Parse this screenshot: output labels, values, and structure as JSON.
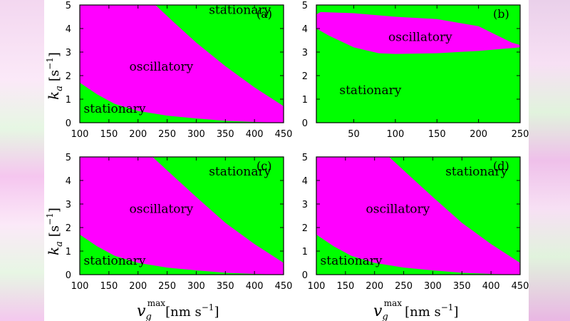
{
  "colors": {
    "oscillatory": "#ff00ff",
    "stationary": "#00ff00",
    "frame": "#000000"
  },
  "labels": {
    "ylabel_symbol": "k",
    "ylabel_sub": "a",
    "ylabel_unit": "[s",
    "ylabel_exp": "−1",
    "ylabel_close": "]",
    "xlabel_symbol": "v",
    "xlabel_sub": "g",
    "xlabel_sup": "max",
    "xlabel_unit_left": "[nm s",
    "xlabel_unit_right": "[nm s",
    "xlabel_exp": "−1",
    "xlabel_close": "]"
  },
  "chart_data": [
    {
      "type": "area",
      "panel": "(a)",
      "xlim": [
        100,
        450
      ],
      "ylim": [
        0,
        5
      ],
      "xticks": [
        100,
        150,
        200,
        250,
        300,
        350,
        400,
        450
      ],
      "yticks": [
        0,
        1,
        2,
        3,
        4,
        5
      ],
      "regions": [
        {
          "name": "stationary",
          "label_at": [
            375,
            4.8
          ]
        },
        {
          "name": "oscillatory",
          "label_at": [
            240,
            2.4
          ]
        },
        {
          "name": "stationary",
          "label_at": [
            160,
            0.6
          ]
        }
      ],
      "upper_boundary": [
        [
          230,
          5
        ],
        [
          260,
          4.3
        ],
        [
          300,
          3.4
        ],
        [
          350,
          2.4
        ],
        [
          400,
          1.5
        ],
        [
          450,
          0.7
        ]
      ],
      "lower_boundary": [
        [
          100,
          1.7
        ],
        [
          130,
          1.2
        ],
        [
          160,
          0.8
        ],
        [
          200,
          0.5
        ],
        [
          250,
          0.3
        ],
        [
          300,
          0.18
        ],
        [
          350,
          0.08
        ],
        [
          400,
          0.03
        ],
        [
          440,
          0.0
        ]
      ]
    },
    {
      "type": "area",
      "panel": "(b)",
      "xlim": [
        5,
        250
      ],
      "ylim": [
        0,
        5
      ],
      "xticks": [
        50,
        100,
        150,
        200,
        250
      ],
      "yticks": [
        0,
        1,
        2,
        3,
        4,
        5
      ],
      "regions": [
        {
          "name": "oscillatory",
          "label_at": [
            130,
            3.65
          ]
        },
        {
          "name": "stationary",
          "label_at": [
            70,
            1.4
          ]
        }
      ],
      "upper_boundary": [
        [
          5,
          4.6
        ],
        [
          10,
          4.7
        ],
        [
          50,
          4.65
        ],
        [
          100,
          4.5
        ],
        [
          150,
          4.4
        ],
        [
          200,
          4.1
        ],
        [
          240,
          3.4
        ],
        [
          250,
          3.3
        ]
      ],
      "lower_boundary": [
        [
          5,
          4.0
        ],
        [
          20,
          3.7
        ],
        [
          50,
          3.2
        ],
        [
          80,
          2.95
        ],
        [
          100,
          2.92
        ],
        [
          150,
          2.95
        ],
        [
          200,
          3.05
        ],
        [
          250,
          3.2
        ]
      ]
    },
    {
      "type": "area",
      "panel": "(c)",
      "xlim": [
        100,
        450
      ],
      "ylim": [
        0,
        5
      ],
      "xticks": [
        100,
        150,
        200,
        250,
        300,
        350,
        400,
        450
      ],
      "yticks": [
        0,
        1,
        2,
        3,
        4,
        5
      ],
      "regions": [
        {
          "name": "stationary",
          "label_at": [
            375,
            4.4
          ]
        },
        {
          "name": "oscillatory",
          "label_at": [
            240,
            2.8
          ]
        },
        {
          "name": "stationary",
          "label_at": [
            160,
            0.6
          ]
        }
      ],
      "upper_boundary": [
        [
          225,
          5
        ],
        [
          260,
          4.2
        ],
        [
          300,
          3.3
        ],
        [
          350,
          2.2
        ],
        [
          400,
          1.3
        ],
        [
          450,
          0.5
        ]
      ],
      "lower_boundary": [
        [
          100,
          1.7
        ],
        [
          130,
          1.2
        ],
        [
          160,
          0.8
        ],
        [
          200,
          0.5
        ],
        [
          250,
          0.3
        ],
        [
          300,
          0.18
        ],
        [
          350,
          0.08
        ],
        [
          400,
          0.03
        ],
        [
          440,
          0.0
        ]
      ]
    },
    {
      "type": "area",
      "panel": "(d)",
      "xlim": [
        100,
        450
      ],
      "ylim": [
        0,
        5
      ],
      "xticks": [
        100,
        150,
        200,
        250,
        300,
        350,
        400,
        450
      ],
      "yticks": [
        0,
        1,
        2,
        3,
        4,
        5
      ],
      "regions": [
        {
          "name": "stationary",
          "label_at": [
            375,
            4.4
          ]
        },
        {
          "name": "oscillatory",
          "label_at": [
            240,
            2.8
          ]
        },
        {
          "name": "stationary",
          "label_at": [
            160,
            0.6
          ]
        }
      ],
      "upper_boundary": [
        [
          225,
          5
        ],
        [
          260,
          4.2
        ],
        [
          300,
          3.3
        ],
        [
          350,
          2.2
        ],
        [
          400,
          1.3
        ],
        [
          450,
          0.5
        ]
      ],
      "lower_boundary": [
        [
          100,
          1.7
        ],
        [
          130,
          1.2
        ],
        [
          160,
          0.8
        ],
        [
          200,
          0.5
        ],
        [
          250,
          0.3
        ],
        [
          300,
          0.18
        ],
        [
          350,
          0.08
        ],
        [
          400,
          0.03
        ],
        [
          440,
          0.0
        ]
      ]
    }
  ]
}
